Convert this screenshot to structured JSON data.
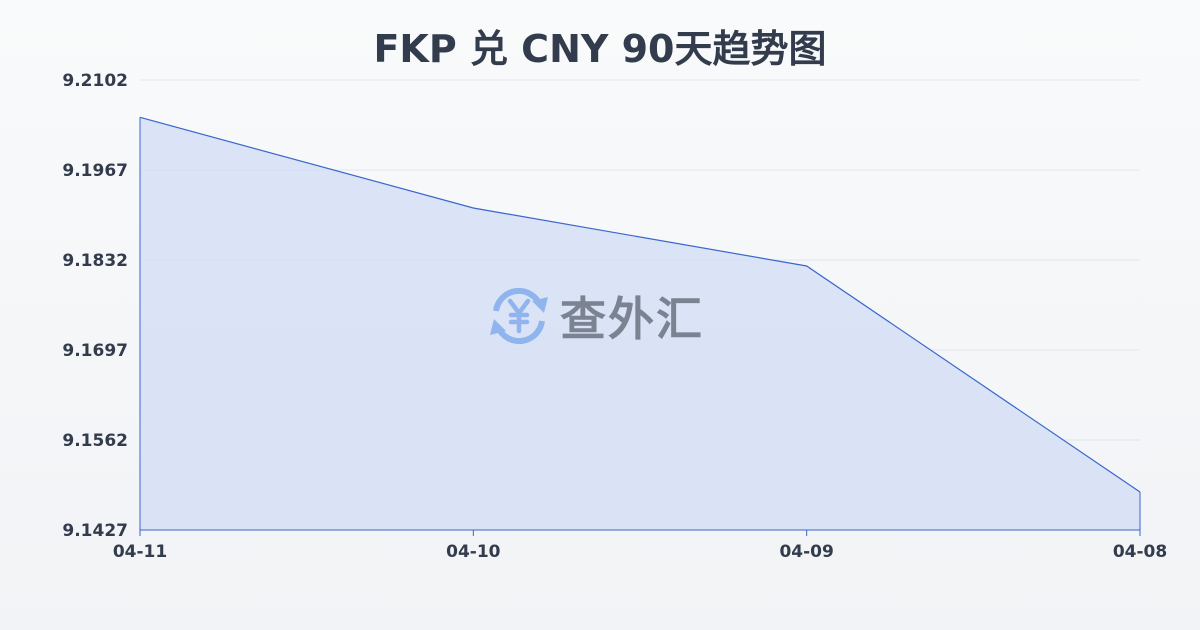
{
  "chart_data": {
    "type": "area",
    "title": "FKP 兑 CNY 90天趋势图",
    "xlabel": "",
    "ylabel": "",
    "categories": [
      "04-11",
      "04-10",
      "04-09",
      "04-08"
    ],
    "values": [
      9.2046,
      9.191,
      9.1823,
      9.1484
    ],
    "y_ticks": [
      "9.2102",
      "9.1967",
      "9.1832",
      "9.1697",
      "9.1562",
      "9.1427"
    ],
    "ylim": [
      9.1427,
      9.2102
    ],
    "grid": true,
    "colors": {
      "line": "#3a66cc",
      "fill": "#d3dff5",
      "grid": "#e3e6eb",
      "text": "#333c4d"
    }
  },
  "watermark": {
    "text": "查外汇",
    "icon": "yuan-exchange-icon",
    "icon_color": "#8fb4ee"
  }
}
